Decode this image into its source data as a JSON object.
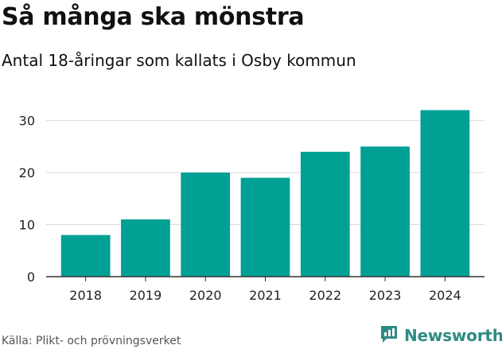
{
  "title": "Så många ska mönstra",
  "subtitle": "Antal 18-åringar som kallats i Osby kommun",
  "source": "Källa: Plikt- och prövningsverket",
  "logo_text": "Newsworthy",
  "colors": {
    "bar": "#00a095",
    "grid": "#d9d9d9",
    "axis": "#333333",
    "logo": "#2e8b84"
  },
  "chart_data": {
    "type": "bar",
    "categories": [
      "2018",
      "2019",
      "2020",
      "2021",
      "2022",
      "2023",
      "2024"
    ],
    "values": [
      8,
      11,
      20,
      19,
      24,
      25,
      32
    ],
    "title": "Så många ska mönstra",
    "subtitle": "Antal 18-åringar som kallats i Osby kommun",
    "xlabel": "",
    "ylabel": "",
    "ylim": [
      0,
      33
    ],
    "yticks": [
      0,
      10,
      20,
      30
    ],
    "grid": true,
    "legend": "none"
  }
}
